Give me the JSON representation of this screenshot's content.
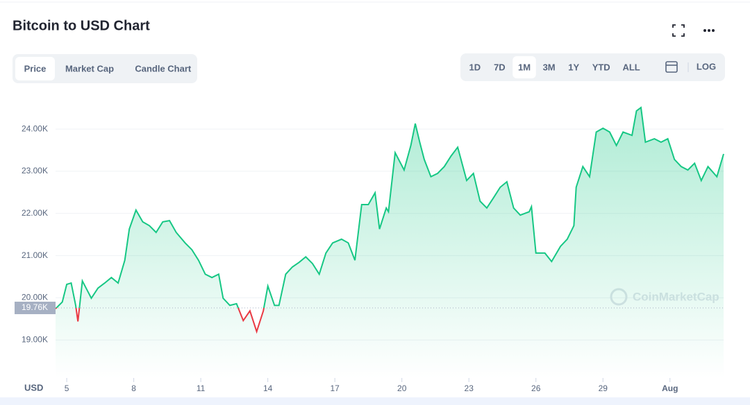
{
  "ui": {
    "tabs": [
      "Price",
      "Market Cap",
      "Candle Chart"
    ],
    "active_tab": "Price",
    "ranges": [
      "1D",
      "7D",
      "1M",
      "3M",
      "1Y",
      "YTD",
      "ALL"
    ],
    "active_range": "1M",
    "log_button": "LOG"
  },
  "chart_data": {
    "type": "line",
    "title": "Bitcoin to USD Chart",
    "unit_label": "USD",
    "watermark": "CoinMarketCap",
    "reference_line": {
      "value": 19760,
      "label": "19.76K"
    },
    "up_color": "#16c784",
    "down_color": "#ea3943",
    "grid": true,
    "xlim": [
      4.5,
      34.4
    ],
    "xticks": [
      5,
      8,
      11,
      14,
      17,
      20,
      23,
      26,
      29,
      {
        "value": 32,
        "label": "Aug"
      }
    ],
    "ylim": [
      18100,
      24840
    ],
    "yticks": [
      {
        "value": 19000,
        "label": "19.00K"
      },
      {
        "value": 20000,
        "label": "20.00K"
      },
      {
        "value": 21000,
        "label": "21.00K"
      },
      {
        "value": 22000,
        "label": "22.00K"
      },
      {
        "value": 23000,
        "label": "23.00K"
      },
      {
        "value": 24000,
        "label": "24.00K"
      }
    ],
    "x": [
      4.5,
      4.8,
      5.0,
      5.2,
      5.4,
      5.5,
      5.7,
      6.1,
      6.4,
      6.7,
      7.0,
      7.3,
      7.6,
      7.8,
      8.1,
      8.4,
      8.7,
      9.0,
      9.3,
      9.6,
      9.9,
      10.3,
      10.6,
      10.9,
      11.2,
      11.5,
      11.8,
      12.0,
      12.3,
      12.6,
      12.9,
      13.2,
      13.5,
      13.8,
      14.0,
      14.3,
      14.5,
      14.8,
      15.1,
      15.4,
      15.7,
      16.0,
      16.3,
      16.6,
      16.9,
      17.3,
      17.6,
      17.9,
      18.2,
      18.5,
      18.8,
      19.0,
      19.3,
      19.4,
      19.7,
      20.1,
      20.4,
      20.6,
      20.8,
      21.0,
      21.3,
      21.6,
      21.9,
      22.2,
      22.5,
      22.9,
      23.2,
      23.5,
      23.8,
      24.1,
      24.4,
      24.7,
      25.0,
      25.3,
      25.7,
      25.8,
      26.0,
      26.4,
      26.7,
      27.1,
      27.4,
      27.7,
      27.8,
      28.1,
      28.4,
      28.7,
      29.0,
      29.3,
      29.6,
      29.9,
      30.3,
      30.5,
      30.7,
      30.9,
      31.3,
      31.6,
      31.9,
      32.2,
      32.5,
      32.8,
      33.1,
      33.4,
      33.7,
      34.1,
      34.4
    ],
    "values": [
      19740,
      19900,
      20320,
      20350,
      19820,
      19440,
      20400,
      19990,
      20230,
      20350,
      20480,
      20350,
      20890,
      21630,
      22080,
      21800,
      21710,
      21550,
      21800,
      21830,
      21550,
      21300,
      21140,
      20890,
      20560,
      20480,
      20560,
      19990,
      19820,
      19860,
      19460,
      19690,
      19200,
      19690,
      20280,
      19820,
      19820,
      20560,
      20730,
      20840,
      20970,
      20810,
      20560,
      21060,
      21300,
      21390,
      21300,
      20890,
      22210,
      22210,
      22490,
      21630,
      22130,
      22040,
      23440,
      23030,
      23610,
      24130,
      23690,
      23280,
      22870,
      22950,
      23110,
      23360,
      23570,
      22780,
      22950,
      22290,
      22130,
      22370,
      22620,
      22750,
      22130,
      21960,
      22040,
      22160,
      21060,
      21060,
      20860,
      21220,
      21390,
      21710,
      22620,
      23110,
      22870,
      23930,
      24020,
      23930,
      23610,
      23930,
      23850,
      24430,
      24510,
      23690,
      23770,
      23690,
      23770,
      23280,
      23110,
      23030,
      23190,
      22780,
      23110,
      22870,
      23410
    ]
  }
}
